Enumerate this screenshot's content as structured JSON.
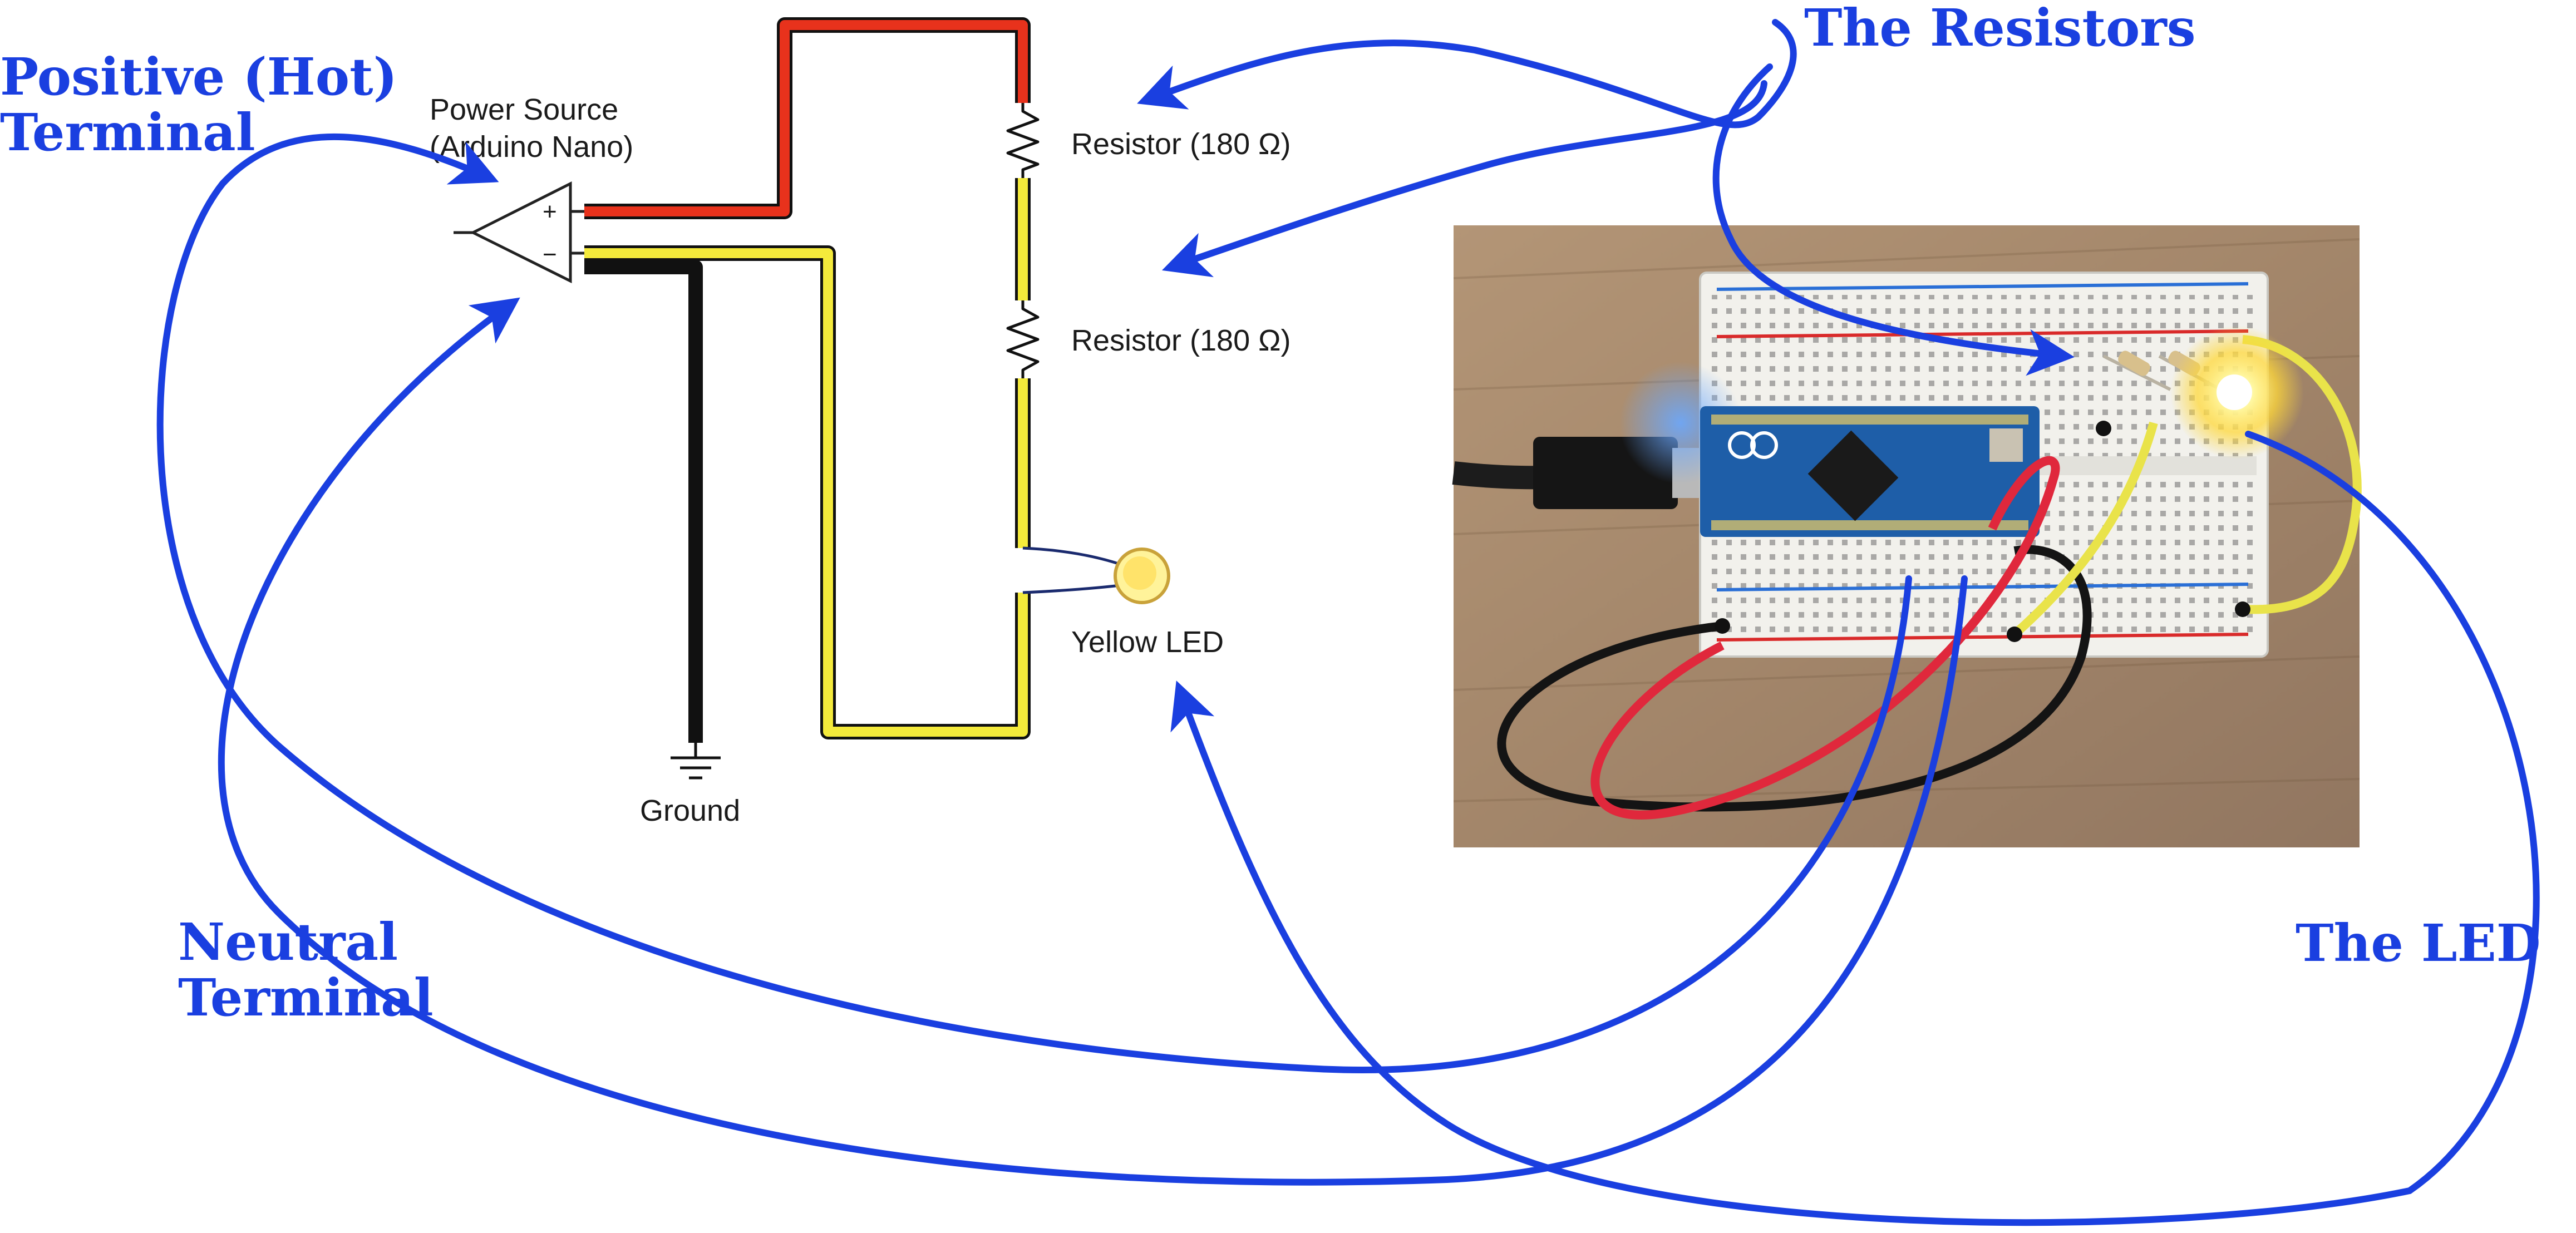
{
  "callouts": {
    "positive_line1": "Positive (Hot)",
    "positive_line2": "Terminal",
    "neutral_line1": "Neutral",
    "neutral_line2": "Terminal",
    "resistors": "The Resistors",
    "led": "The LED"
  },
  "schematic": {
    "power_line1": "Power Source",
    "power_line2": "(Arduino Nano)",
    "plus_sign": "+",
    "minus_sign": "−",
    "resistor_top": "Resistor (180 Ω)",
    "resistor_bottom": "Resistor (180 Ω)",
    "led": "Yellow LED",
    "ground": "Ground"
  },
  "colors": {
    "callout_blue": "#1a3fe0",
    "hot_wire": "#e8321c",
    "led_wire": "#f4ea3b",
    "ground_wire": "#111111",
    "photo_background": "#a88c6c"
  }
}
